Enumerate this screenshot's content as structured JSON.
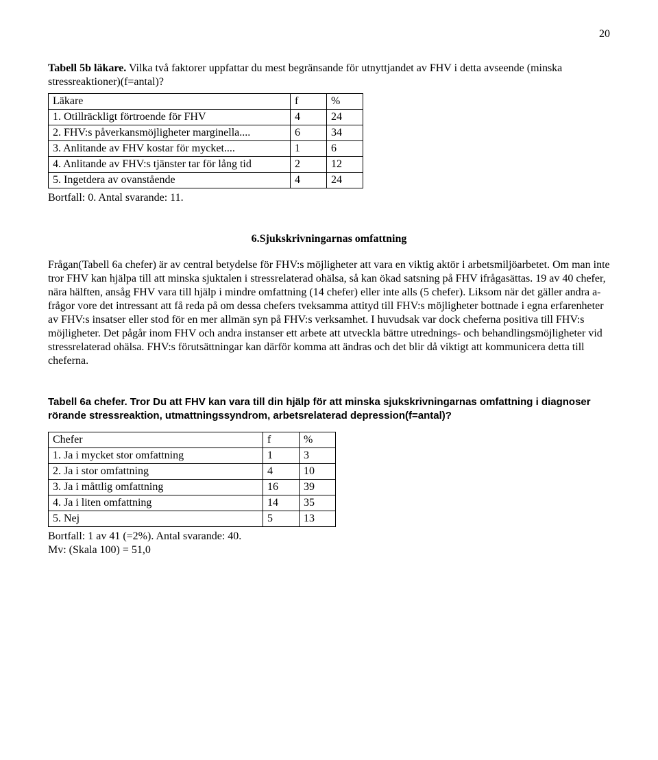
{
  "pageNumber": "20",
  "caption5b": {
    "boldLead": "Tabell 5b läkare.",
    "rest": " Vilka två faktorer uppfattar du mest begränsande för utnyttjandet av FHV i detta avseende (minska stressreaktioner)(f=antal)?"
  },
  "table5b": {
    "header": {
      "label": "Läkare",
      "f": "f",
      "pct": "%"
    },
    "rows": [
      {
        "label": "1. Otillräckligt förtroende för FHV",
        "f": "4",
        "pct": "24"
      },
      {
        "label": "2. FHV:s påverkansmöjligheter marginella....",
        "f": "6",
        "pct": "34"
      },
      {
        "label": "3. Anlitande av FHV kostar för mycket....",
        "f": "1",
        "pct": "6"
      },
      {
        "label": "4. Anlitande av FHV:s tjänster tar för lång tid",
        "f": "2",
        "pct": "12"
      },
      {
        "label": "5. Ingetdera av ovanstående",
        "f": "4",
        "pct": "24"
      }
    ],
    "after": "Bortfall: 0. Antal svarande: 11."
  },
  "section6": {
    "heading": "6.Sjukskrivningarnas omfattning",
    "paragraph": "Frågan(Tabell 6a chefer) är av central betydelse för FHV:s möjligheter att vara en viktig aktör i arbetsmiljöarbetet. Om man inte tror FHV kan hjälpa till att minska sjuktalen i stressrelaterad ohälsa, så kan ökad satsning på FHV ifrågasättas. 19 av 40 chefer, nära hälften, ansåg FHV vara till hjälp i mindre omfattning (14 chefer) eller inte alls (5 chefer). Liksom när det gäller andra a-frågor vore det intressant att få reda på om dessa chefers tveksamma attityd till FHV:s möjligheter bottnade i egna erfarenheter av FHV:s insatser eller stod för en mer allmän syn på FHV:s verksamhet. I huvudsak var dock cheferna positiva till FHV:s möjligheter. Det pågår inom FHV och andra instanser ett arbete att utveckla bättre utrednings- och behandlingsmöjligheter vid stressrelaterad ohälsa. FHV:s förutsättningar kan därför komma att ändras och det blir då viktigt att kommunicera detta till cheferna."
  },
  "caption6a": {
    "boldLead": "Tabell 6a chefer.",
    "restBold": " Tror Du att FHV kan vara till din hjälp för att minska sjukskrivningarnas omfattning i diagnoser rörande stressreaktion, utmattningssyndrom, arbetsrelaterad depression(f=antal)?"
  },
  "table6a": {
    "header": {
      "label": "Chefer",
      "f": "f",
      "pct": "%"
    },
    "rows": [
      {
        "label": "1. Ja i mycket stor omfattning",
        "f": "1",
        "pct": "3"
      },
      {
        "label": "2. Ja i stor omfattning",
        "f": "4",
        "pct": "10"
      },
      {
        "label": "3. Ja i måttlig omfattning",
        "f": "16",
        "pct": "39"
      },
      {
        "label": "4. Ja i liten omfattning",
        "f": "14",
        "pct": "35"
      },
      {
        "label": "5. Nej",
        "f": "5",
        "pct": "13"
      }
    ],
    "after1": "Bortfall: 1 av 41 (=2%). Antal svarande: 40.",
    "after2": "Mv: (Skala 100) = 51,0"
  }
}
